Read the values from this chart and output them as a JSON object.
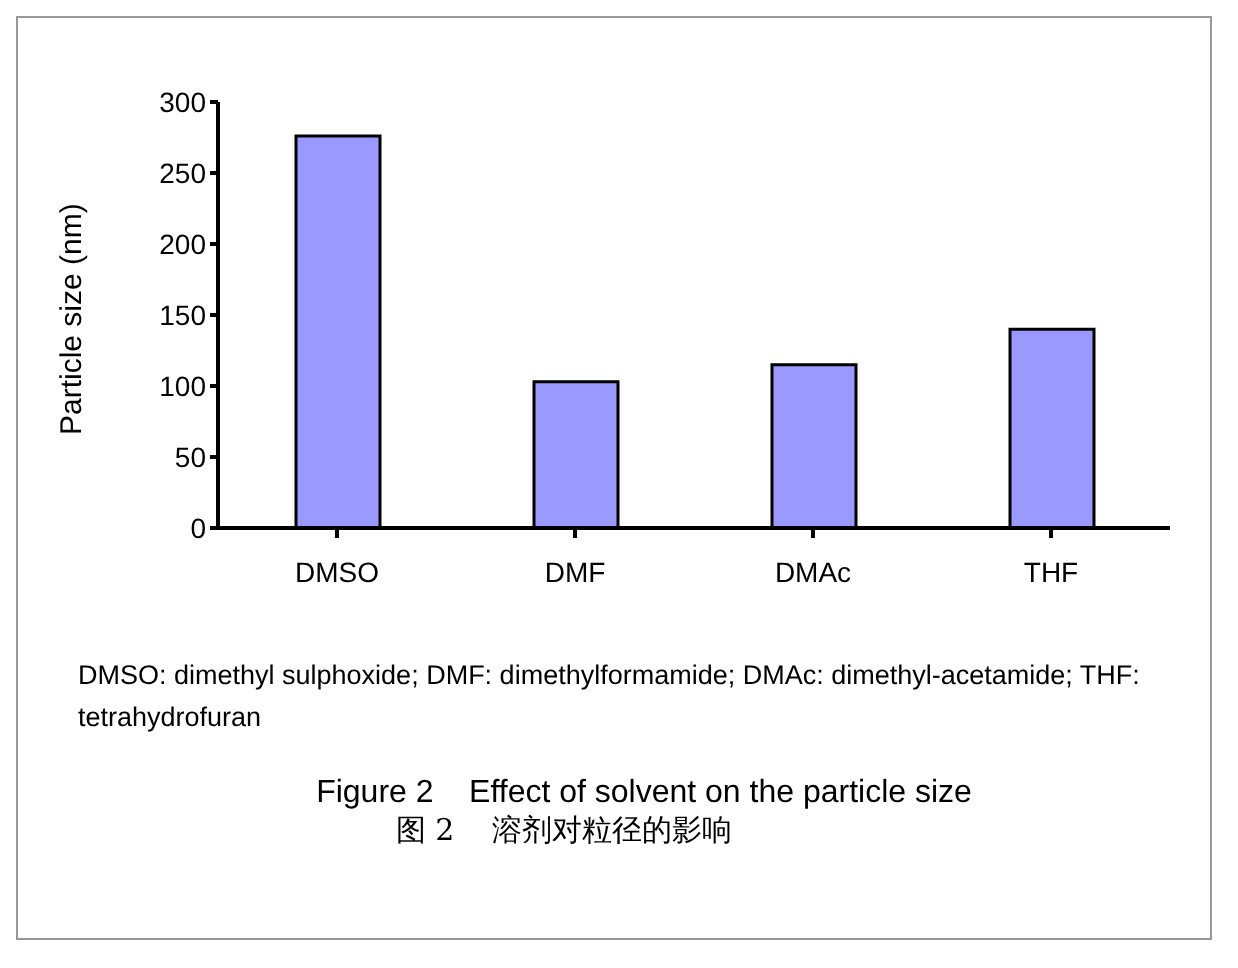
{
  "chart_data": {
    "type": "bar",
    "title": "Figure 2    Effect of solvent on the particle size",
    "subtitle": "图 2    溶剂对粒径的影响",
    "ylabel": "Particle size (nm)",
    "categories": [
      "DMSO",
      "DMF",
      "DMAc",
      "THF"
    ],
    "values": [
      276,
      103,
      115,
      140
    ],
    "color": "#9999ff",
    "ylim": [
      0,
      300
    ],
    "yticks": [
      0,
      50,
      100,
      150,
      200,
      250,
      300
    ],
    "grid": false,
    "legend": false,
    "annotations": [
      "DMSO: dimethyl sulphoxide; DMF: dimethylformamide; DMAc: dimethyl-acetamide; THF: tetrahydrofuran"
    ]
  }
}
